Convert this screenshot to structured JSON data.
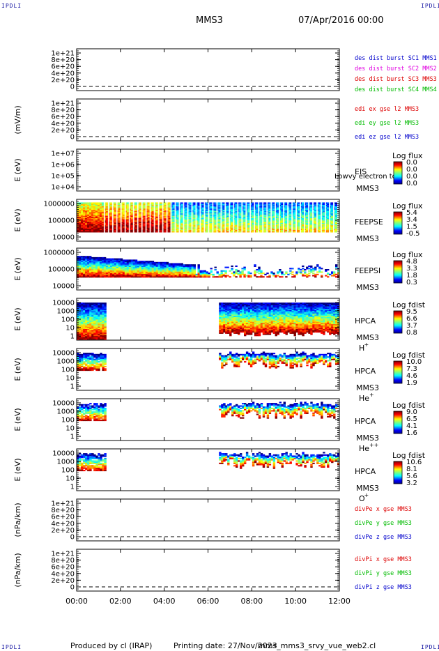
{
  "header": {
    "corner_label": "IPDLI",
    "spacecraft": "MMS3",
    "date": "07/Apr/2016 00:00"
  },
  "footer": {
    "producer": "Produced by cl (IRAP)",
    "printing": "Printing date: 27/Nov/2023",
    "script": "mms_mms3_srvy_vue_web2.cl"
  },
  "chart_data": {
    "type": "stacked time-series panels",
    "x_ticks": [
      "00:00",
      "02:00",
      "04:00",
      "06:00",
      "08:00",
      "10:00",
      "12:00"
    ],
    "xlim_hours": [
      0,
      12
    ],
    "panels": [
      {
        "id": "des-dist",
        "kind": "line",
        "ylabel": "",
        "yticks": [
          "1e+21",
          "8e+20",
          "6e+20",
          "4e+20",
          "2e+20",
          "0"
        ],
        "legend": [
          {
            "text": "des dist burst SC1 MMS1",
            "color": "#0000cc"
          },
          {
            "text": "des dist burst SC2 MMS2",
            "color": "#e000e0"
          },
          {
            "text": "des dist burst SC3 MMS3",
            "color": "#dd0000"
          },
          {
            "text": "des dist burst SC4 MMS4",
            "color": "#00bb00"
          }
        ]
      },
      {
        "id": "edi",
        "kind": "line",
        "ylabel": "(mV/m)",
        "yticks": [
          "1e+21",
          "8e+20",
          "6e+20",
          "4e+20",
          "2e+20",
          "0"
        ],
        "legend": [
          {
            "text": "edi ex gse l2 MMS3",
            "color": "#dd0000"
          },
          {
            "text": "edi ey gse l2 MMS3",
            "color": "#00bb00"
          },
          {
            "text": "edi ez gse l2 MMS3",
            "color": "#0000cc"
          }
        ]
      },
      {
        "id": "eis",
        "kind": "spectrogram",
        "ylabel": "E (eV)",
        "yticks": [
          "1e+07",
          "1e+06",
          "1e+05",
          "1e+04"
        ],
        "instrument": "EIS",
        "subtitle": "Lowvy electron to",
        "spacecraft": "MMS3",
        "species": "",
        "cbar_title": "Log flux",
        "cbar_ticks": [
          "0.0",
          "0.0",
          "0.0",
          "0.0"
        ],
        "segments": []
      },
      {
        "id": "feepse",
        "kind": "spectrogram",
        "ylabel": "E (eV)",
        "yticks": [
          "1000000",
          "100000",
          "10000"
        ],
        "instrument": "FEEPSE",
        "spacecraft": "MMS3",
        "species": "",
        "cbar_title": "Log flux",
        "cbar_ticks": [
          "5.4",
          "3.4",
          "1.5",
          "-0.5"
        ],
        "segments": [
          [
            0,
            12
          ]
        ]
      },
      {
        "id": "feepsi",
        "kind": "spectrogram",
        "ylabel": "E (eV)",
        "yticks": [
          "1000000",
          "100000",
          "10000"
        ],
        "instrument": "FEEPSI",
        "spacecraft": "MMS3",
        "species": "",
        "cbar_title": "Log flux",
        "cbar_ticks": [
          "4.8",
          "3.3",
          "1.8",
          "0.3"
        ],
        "segments": [
          [
            0,
            12
          ]
        ]
      },
      {
        "id": "hpca-h",
        "kind": "spectrogram",
        "ylabel": "E (eV)",
        "yticks": [
          "10000",
          "1000",
          "100",
          "10",
          "1"
        ],
        "instrument": "HPCA",
        "spacecraft": "MMS3",
        "species": "H",
        "species_sup": "+",
        "cbar_title": "Log fdist",
        "cbar_ticks": [
          "9.5",
          "6.6",
          "3.7",
          "0.8"
        ],
        "segments": [
          [
            0,
            1.35
          ],
          [
            6.5,
            12
          ]
        ]
      },
      {
        "id": "hpca-he",
        "kind": "spectrogram",
        "ylabel": "E (eV)",
        "yticks": [
          "10000",
          "1000",
          "100",
          "10",
          "1"
        ],
        "instrument": "HPCA",
        "spacecraft": "MMS3",
        "species": "He",
        "species_sup": "+",
        "cbar_title": "Log fdist",
        "cbar_ticks": [
          "10.0",
          "7.3",
          "4.6",
          "1.9"
        ],
        "segments": [
          [
            0,
            1.35
          ],
          [
            6.5,
            12
          ]
        ]
      },
      {
        "id": "hpca-hepp",
        "kind": "spectrogram",
        "ylabel": "E (eV)",
        "yticks": [
          "10000",
          "1000",
          "100",
          "10",
          "1"
        ],
        "instrument": "HPCA",
        "spacecraft": "MMS3",
        "species": "He",
        "species_sup": "++",
        "cbar_title": "Log fdist",
        "cbar_ticks": [
          "9.0",
          "6.5",
          "4.1",
          "1.6"
        ],
        "segments": [
          [
            0,
            1.35
          ],
          [
            6.5,
            12
          ]
        ]
      },
      {
        "id": "hpca-o",
        "kind": "spectrogram",
        "ylabel": "E (eV)",
        "yticks": [
          "10000",
          "1000",
          "100",
          "10",
          "1"
        ],
        "instrument": "HPCA",
        "spacecraft": "MMS3",
        "species": "O",
        "species_sup": "+",
        "cbar_title": "Log fdist",
        "cbar_ticks": [
          "10.6",
          "8.1",
          "5.6",
          "3.2"
        ],
        "segments": [
          [
            0,
            1.35
          ],
          [
            6.5,
            12
          ]
        ]
      },
      {
        "id": "divpe",
        "kind": "line",
        "ylabel": "(nPa/km)",
        "yticks": [
          "1e+21",
          "8e+20",
          "6e+20",
          "4e+20",
          "2e+20",
          "0"
        ],
        "legend": [
          {
            "text": "divPe x gse MMS3",
            "color": "#dd0000"
          },
          {
            "text": "divPe y gse MMS3",
            "color": "#00bb00"
          },
          {
            "text": "divPe z gse MMS3",
            "color": "#0000cc"
          }
        ]
      },
      {
        "id": "divpi",
        "kind": "line",
        "ylabel": "(nPa/km)",
        "yticks": [
          "1e+21",
          "8e+20",
          "6e+20",
          "4e+20",
          "2e+20",
          "0"
        ],
        "legend": [
          {
            "text": "divPi x gse MMS3",
            "color": "#dd0000"
          },
          {
            "text": "divPi y gse MMS3",
            "color": "#00bb00"
          },
          {
            "text": "divPi z gse MMS3",
            "color": "#0000cc"
          }
        ]
      }
    ]
  }
}
